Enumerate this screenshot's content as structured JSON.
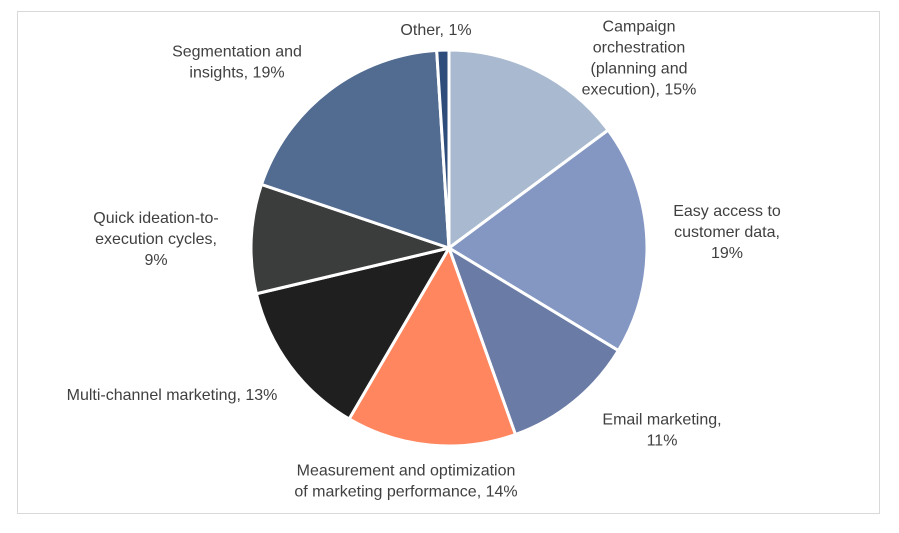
{
  "chart_data": {
    "type": "pie",
    "title": "",
    "legend": "none",
    "slices": [
      {
        "label": "Campaign orchestration (planning and execution)",
        "value": 15,
        "color": "#a9b9cf",
        "label_lines": [
          "Campaign",
          "orchestration",
          "(planning and",
          "execution), 15%"
        ]
      },
      {
        "label": "Easy access to customer data",
        "value": 19,
        "color": "#8497c3",
        "label_lines": [
          "Easy access to",
          "customer data,",
          "19%"
        ]
      },
      {
        "label": "Email marketing",
        "value": 11,
        "color": "#6a7ba6",
        "label_lines": [
          "Email marketing,",
          "11%"
        ]
      },
      {
        "label": "Measurement and optimization of marketing performance",
        "value": 14,
        "color": "#ff865e",
        "label_lines": [
          "Measurement and optimization",
          "of marketing performance, 14%"
        ]
      },
      {
        "label": "Multi-channel marketing",
        "value": 13,
        "color": "#1f1f1f",
        "label_lines": [
          "Multi-channel marketing, 13%"
        ]
      },
      {
        "label": "Quick ideation-to-execution cycles",
        "value": 9,
        "color": "#3b3d3c",
        "label_lines": [
          "Quick ideation-to-",
          "execution cycles,",
          "9%"
        ]
      },
      {
        "label": "Segmentation and insights",
        "value": 19,
        "color": "#516b91",
        "label_lines": [
          "Segmentation and",
          "insights, 19%"
        ]
      },
      {
        "label": "Other",
        "value": 1,
        "color": "#2f4d7b",
        "label_lines": [
          "Other, 1%"
        ]
      }
    ]
  }
}
